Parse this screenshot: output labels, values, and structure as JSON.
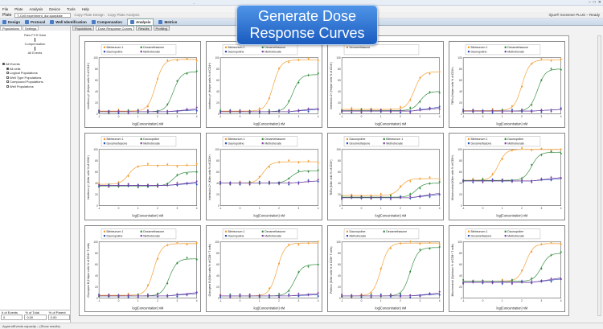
{
  "window": {
    "title": "...",
    "controls": [
      "–",
      "□",
      "✕"
    ]
  },
  "menu": [
    "File",
    "Plate",
    "Analysis",
    "Device",
    "Tools",
    "Help"
  ],
  "plate": {
    "label": "Plate",
    "file": "T-Cell experiment_dur.iqueplate",
    "links": [
      "Copy Plate Design",
      "Copy Plate Analysis"
    ],
    "right": "iQue® Screener PLUS – Ready"
  },
  "tabs": [
    "Design",
    "Protocol",
    "Well Identification",
    "Compensation",
    "Analysis",
    "Metrics"
  ],
  "left": {
    "tabs": [
      "Populations",
      "Settings"
    ],
    "flow": [
      "Raw FCS Data",
      "Compensation",
      "All Events"
    ],
    "tree": [
      {
        "label": "All Events",
        "level": 0
      },
      {
        "label": "All cells",
        "level": 1
      },
      {
        "label": "Logical Populations",
        "level": 1
      },
      {
        "label": "Well Type Populations",
        "level": 1
      },
      {
        "label": "Compound Populations",
        "level": 1
      },
      {
        "label": "Well Populations",
        "level": 1
      }
    ],
    "stats": {
      "headers": [
        "# of Events",
        "% of Total",
        "% of Parent"
      ],
      "values": [
        "0",
        "0.00",
        "0.00"
      ]
    }
  },
  "subtabs": [
    "Populations",
    "Dose Response Curves",
    "Results",
    "Profiling"
  ],
  "status": "AppendEvents capacity – (Show results)",
  "banner": "Generate Dose Response Curves",
  "colors": {
    "orange": "#f39a2a",
    "green": "#2e8b3a",
    "blue": "#2c4fb8",
    "purple": "#7a3fa0",
    "red": "#c8323a"
  },
  "chart_data": [
    {
      "type": "scatter",
      "xlabel": "log(Concentration) nM",
      "ylabel": "Interferon-γ+ (Helper cells % of CD4+)",
      "legend": [
        "Blebeunum 1",
        "Dexamethasone",
        "Daunopoline",
        "Methotrexate"
      ],
      "xlim": [
        -1,
        4
      ],
      "ylim": [
        0,
        100
      ],
      "series": [
        {
          "color": "orange",
          "ec50": 1.9,
          "top": 97,
          "bottom": 5
        },
        {
          "color": "green",
          "ec50": 2.8,
          "top": 75,
          "bottom": 4
        },
        {
          "color": "blue",
          "ec50": null,
          "top": 7,
          "bottom": 4
        },
        {
          "color": "purple",
          "ec50": null,
          "top": 9,
          "bottom": 4
        }
      ]
    },
    {
      "type": "scatter",
      "xlabel": "log(Concentration) nM",
      "ylabel": "Interferon-γ+ (Helper cells % of CD4+)",
      "legend": [
        "Blebeunum 1",
        "Dexamethasone",
        "Daunopoline",
        "Methotrexate"
      ],
      "xlim": [
        -1,
        4
      ],
      "ylim": [
        0,
        100
      ],
      "series": [
        {
          "color": "orange",
          "ec50": 1.7,
          "top": 96,
          "bottom": 5
        },
        {
          "color": "green",
          "ec50": 2.7,
          "top": 70,
          "bottom": 4
        },
        {
          "color": "blue",
          "ec50": null,
          "top": 8,
          "bottom": 4
        },
        {
          "color": "purple",
          "ec50": null,
          "top": 10,
          "bottom": 4
        }
      ]
    },
    {
      "type": "scatter",
      "xlabel": "log(Concentration) nM",
      "ylabel": "Interleukin-2+ (Helper cells % of CD4+)",
      "legend": [
        "Dexamethasone"
      ],
      "xlim": [
        -1,
        4
      ],
      "ylim": [
        0,
        100
      ],
      "series": [
        {
          "color": "orange",
          "ec50": 2.7,
          "top": 75,
          "bottom": 8
        },
        {
          "color": "green",
          "ec50": 3.0,
          "top": 40,
          "bottom": 6
        },
        {
          "color": "blue",
          "ec50": null,
          "top": 12,
          "bottom": 5
        },
        {
          "color": "purple",
          "ec50": null,
          "top": 10,
          "bottom": 5
        }
      ]
    },
    {
      "type": "scatter",
      "xlabel": "log(Concentration) nM",
      "ylabel": "TNFα (Helper cells % of CD4+)",
      "legend": [
        "Blebeunum 1",
        "Dexamethasone",
        "Daunopoline",
        "Methotrexate"
      ],
      "xlim": [
        -1,
        4
      ],
      "ylim": [
        0,
        100
      ],
      "series": [
        {
          "color": "orange",
          "ec50": 2.0,
          "top": 96,
          "bottom": 6
        },
        {
          "color": "green",
          "ec50": 2.8,
          "top": 80,
          "bottom": 5
        },
        {
          "color": "blue",
          "ec50": null,
          "top": 8,
          "bottom": 5
        },
        {
          "color": "purple",
          "ec50": null,
          "top": 8,
          "bottom": 5
        }
      ]
    },
    {
      "type": "scatter",
      "xlabel": "log(Concentration) nM",
      "ylabel": "Interferon-γ+ (Killer cells % of CD8+)",
      "legend": [
        "Blebeunum 1",
        "Daunopoline",
        "Dexamethasone",
        "Methotrexate"
      ],
      "xlim": [
        -1,
        4
      ],
      "ylim": [
        0,
        100
      ],
      "series": [
        {
          "color": "orange",
          "ec50": 0.5,
          "top": 72,
          "bottom": 38
        },
        {
          "color": "green",
          "ec50": 2.8,
          "top": 60,
          "bottom": 35
        },
        {
          "color": "blue",
          "ec50": null,
          "top": 40,
          "bottom": 36
        },
        {
          "color": "purple",
          "ec50": null,
          "top": 42,
          "bottom": 36
        }
      ]
    },
    {
      "type": "scatter",
      "xlabel": "log(Concentration) nM",
      "ylabel": "Interleukin-2+ (Killer cells % of CD8+)",
      "legend": [
        "Blebeunum 1",
        "Dexamethasone",
        "Daunopoline",
        "Methotrexate"
      ],
      "xlim": [
        -1,
        4
      ],
      "ylim": [
        0,
        100
      ],
      "series": [
        {
          "color": "orange",
          "ec50": 1.2,
          "top": 78,
          "bottom": 40
        },
        {
          "color": "green",
          "ec50": 2.6,
          "top": 62,
          "bottom": 40
        },
        {
          "color": "blue",
          "ec50": null,
          "top": 44,
          "bottom": 40
        },
        {
          "color": "purple",
          "ec50": null,
          "top": 44,
          "bottom": 40
        }
      ]
    },
    {
      "type": "scatter",
      "xlabel": "log(Concentration) nM",
      "ylabel": "TNFα (Killer cells % of CD8+)",
      "legend": [
        "Daunopoline",
        "Blebeunum 1",
        "Dexamethasone",
        "Methotrexate"
      ],
      "xlim": [
        -1,
        4
      ],
      "ylim": [
        0,
        100
      ],
      "series": [
        {
          "color": "orange",
          "ec50": 2.0,
          "top": 48,
          "bottom": 18
        },
        {
          "color": "green",
          "ec50": 2.8,
          "top": 40,
          "bottom": 15
        },
        {
          "color": "blue",
          "ec50": null,
          "top": 20,
          "bottom": 14
        },
        {
          "color": "purple",
          "ec50": null,
          "top": 22,
          "bottom": 14
        }
      ]
    },
    {
      "type": "scatter",
      "xlabel": "log(Concentration) nM",
      "ylabel": "Mitochondrial (Killer cells % of CD8+)",
      "legend": [
        "Blebeunum 1",
        "Daunopoline",
        "Dexamethasone",
        "Methotrexate"
      ],
      "xlim": [
        -1,
        4
      ],
      "ylim": [
        0,
        100
      ],
      "series": [
        {
          "color": "orange",
          "ec50": 0.8,
          "top": 100,
          "bottom": 45
        },
        {
          "color": "green",
          "ec50": 2.5,
          "top": 95,
          "bottom": 45
        },
        {
          "color": "blue",
          "ec50": null,
          "top": 48,
          "bottom": 44
        },
        {
          "color": "purple",
          "ec50": null,
          "top": 50,
          "bottom": 44
        }
      ]
    },
    {
      "type": "scatter",
      "xlabel": "log(Concentration) nM",
      "ylabel": "Granzyme B (Helper cells % of CD4+ T cells)",
      "legend": [
        "Blebeunum 1",
        "Dexamethasone",
        "Daunopoline",
        "Methotrexate"
      ],
      "xlim": [
        -1,
        4
      ],
      "ylim": [
        0,
        100
      ],
      "series": [
        {
          "color": "orange",
          "ec50": 1.8,
          "top": 97,
          "bottom": 5
        },
        {
          "color": "green",
          "ec50": 2.6,
          "top": 70,
          "bottom": 4
        },
        {
          "color": "blue",
          "ec50": null,
          "top": 8,
          "bottom": 4
        },
        {
          "color": "purple",
          "ec50": null,
          "top": 10,
          "bottom": 4
        }
      ]
    },
    {
      "type": "scatter",
      "xlabel": "log(Concentration) nM",
      "ylabel": "Granzyme B (Killer cells % of CD8+ T cells)",
      "legend": [
        "Blebeunum 1",
        "Dexamethasone",
        "Daunopoline",
        "Methotrexate"
      ],
      "xlim": [
        -1,
        4
      ],
      "ylim": [
        0,
        100
      ],
      "series": [
        {
          "color": "orange",
          "ec50": 1.9,
          "top": 98,
          "bottom": 4
        },
        {
          "color": "green",
          "ec50": 2.8,
          "top": 60,
          "bottom": 4
        },
        {
          "color": "blue",
          "ec50": null,
          "top": 6,
          "bottom": 4
        },
        {
          "color": "purple",
          "ec50": null,
          "top": 8,
          "bottom": 4
        }
      ]
    },
    {
      "type": "scatter",
      "xlabel": "log(Concentration) nM",
      "ylabel": "Perforin (Killer cells % of CD8+ T cells)",
      "legend": [
        "Daunopoline",
        "Dexamethasone",
        "Methotrexate"
      ],
      "xlim": [
        -1,
        4
      ],
      "ylim": [
        0,
        100
      ],
      "series": [
        {
          "color": "orange",
          "ec50": 1.0,
          "top": 98,
          "bottom": 4
        },
        {
          "color": "green",
          "ec50": 2.5,
          "top": 90,
          "bottom": 4
        },
        {
          "color": "blue",
          "ec50": null,
          "top": 7,
          "bottom": 4
        },
        {
          "color": "purple",
          "ec50": null,
          "top": 9,
          "bottom": 4
        }
      ]
    },
    {
      "type": "scatter",
      "xlabel": "log(Concentration) nM",
      "ylabel": "Mitochondrial (Cytotoxic % of CD8+ T cells)",
      "legend": [
        "Blebeunum 1",
        "Daunopoline",
        "Dexamethasone",
        "Methotrexate"
      ],
      "xlim": [
        -1,
        4
      ],
      "ylim": [
        0,
        100
      ],
      "series": [
        {
          "color": "orange",
          "ec50": 2.2,
          "top": 97,
          "bottom": 30
        },
        {
          "color": "green",
          "ec50": 3.0,
          "top": 80,
          "bottom": 30
        },
        {
          "color": "blue",
          "ec50": null,
          "top": 34,
          "bottom": 28
        },
        {
          "color": "purple",
          "ec50": null,
          "top": 36,
          "bottom": 28
        }
      ]
    }
  ]
}
